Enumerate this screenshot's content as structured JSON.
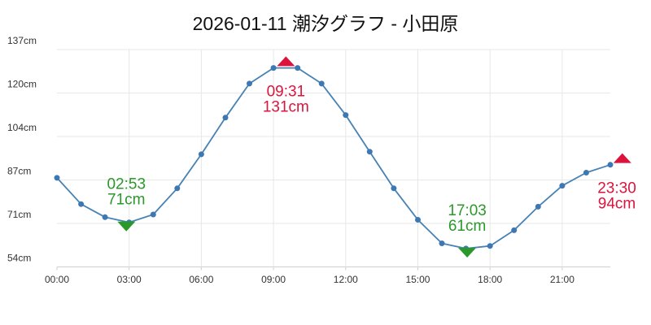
{
  "title": "2026-01-11 潮汐グラフ - 小田原",
  "colors": {
    "line": "#4682b4",
    "marker": "#3d78b4",
    "high_tide": "#dc143c",
    "low_tide": "#2a992a",
    "grid": "#e7e7e7",
    "axis": "#cccccc",
    "tick_text": "#333333",
    "title_text": "#111111",
    "background": "#ffffff"
  },
  "chart_data": {
    "type": "line",
    "title": "2026-01-11 潮汐グラフ - 小田原",
    "unit": "cm",
    "grid": true,
    "ylim": [
      54,
      137
    ],
    "y_tick_labels": [
      "137cm",
      "120cm",
      "104cm",
      "87cm",
      "71cm",
      "54cm"
    ],
    "x_tick_labels": [
      "00:00",
      "03:00",
      "06:00",
      "09:00",
      "12:00",
      "15:00",
      "18:00",
      "21:00"
    ],
    "x_tick_hours": [
      0,
      3,
      6,
      9,
      12,
      15,
      18,
      21
    ],
    "times": [
      "00:00",
      "01:00",
      "02:00",
      "03:00",
      "04:00",
      "05:00",
      "06:00",
      "07:00",
      "08:00",
      "09:00",
      "10:00",
      "11:00",
      "12:00",
      "13:00",
      "14:00",
      "15:00",
      "16:00",
      "17:00",
      "18:00",
      "19:00",
      "20:00",
      "21:00",
      "22:00",
      "23:00"
    ],
    "values": [
      88,
      78,
      73,
      71,
      74,
      84,
      97,
      111,
      124,
      130,
      130,
      124,
      112,
      98,
      84,
      72,
      63,
      61,
      62,
      68,
      77,
      85,
      90,
      93
    ],
    "extremes": [
      {
        "type": "low",
        "time": "02:53",
        "height_cm": 71,
        "label": "71cm"
      },
      {
        "type": "high",
        "time": "09:31",
        "height_cm": 131,
        "label": "131cm"
      },
      {
        "type": "low",
        "time": "17:03",
        "height_cm": 61,
        "label": "61cm"
      },
      {
        "type": "high",
        "time": "23:30",
        "height_cm": 94,
        "label": "94cm"
      }
    ]
  }
}
